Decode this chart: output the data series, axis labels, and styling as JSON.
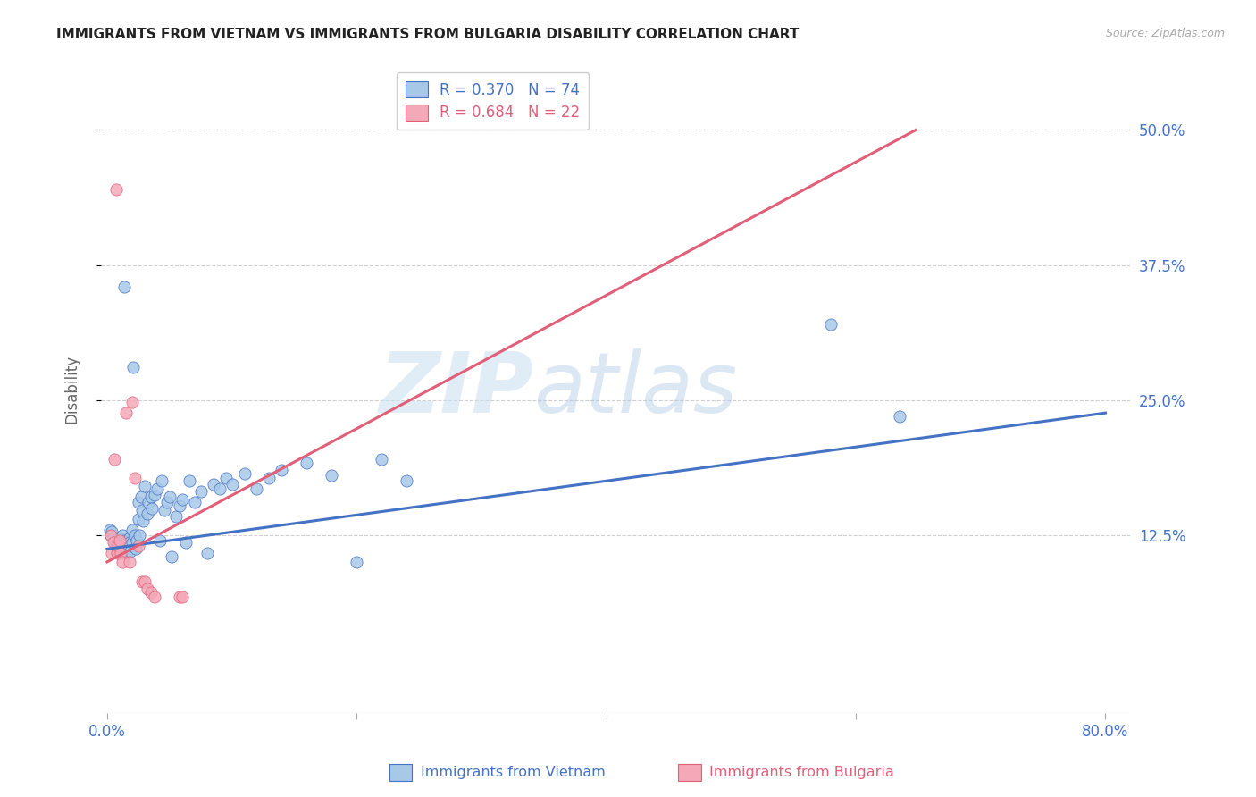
{
  "title": "IMMIGRANTS FROM VIETNAM VS IMMIGRANTS FROM BULGARIA DISABILITY CORRELATION CHART",
  "source": "Source: ZipAtlas.com",
  "ylabel": "Disability",
  "xlim": [
    -0.005,
    0.82
  ],
  "ylim": [
    -0.04,
    0.56
  ],
  "xticks": [
    0.0,
    0.2,
    0.4,
    0.6,
    0.8
  ],
  "xtick_labels": [
    "0.0%",
    "",
    "",
    "",
    "80.0%"
  ],
  "yticks": [
    0.125,
    0.25,
    0.375,
    0.5
  ],
  "ytick_labels": [
    "12.5%",
    "25.0%",
    "37.5%",
    "50.0%"
  ],
  "vietnam_color": "#a8c8e8",
  "bulgaria_color": "#f4a8b8",
  "vietnam_line_color": "#4472c4",
  "bulgaria_line_color": "#e0607a",
  "legend_vietnam_r": "R = 0.370",
  "legend_vietnam_n": "N = 74",
  "legend_bulgaria_r": "R = 0.684",
  "legend_bulgaria_n": "N = 22",
  "watermark_zip": "ZIP",
  "watermark_atlas": "atlas",
  "background_color": "#ffffff",
  "grid_color": "#d0d0d0",
  "title_color": "#222222",
  "right_tick_color": "#4472c4",
  "vietnam_scatter_x": [
    0.002,
    0.003,
    0.004,
    0.005,
    0.006,
    0.007,
    0.008,
    0.008,
    0.009,
    0.01,
    0.01,
    0.01,
    0.011,
    0.011,
    0.012,
    0.012,
    0.013,
    0.013,
    0.014,
    0.015,
    0.015,
    0.016,
    0.017,
    0.018,
    0.018,
    0.019,
    0.02,
    0.02,
    0.021,
    0.022,
    0.023,
    0.024,
    0.025,
    0.025,
    0.026,
    0.027,
    0.028,
    0.029,
    0.03,
    0.032,
    0.033,
    0.035,
    0.036,
    0.038,
    0.04,
    0.042,
    0.044,
    0.046,
    0.048,
    0.05,
    0.052,
    0.055,
    0.058,
    0.06,
    0.063,
    0.066,
    0.07,
    0.075,
    0.08,
    0.085,
    0.09,
    0.095,
    0.1,
    0.11,
    0.12,
    0.13,
    0.14,
    0.16,
    0.18,
    0.2,
    0.22,
    0.24,
    0.58,
    0.635
  ],
  "vietnam_scatter_y": [
    0.13,
    0.125,
    0.128,
    0.122,
    0.118,
    0.115,
    0.12,
    0.112,
    0.119,
    0.108,
    0.115,
    0.122,
    0.118,
    0.113,
    0.125,
    0.11,
    0.12,
    0.116,
    0.355,
    0.118,
    0.112,
    0.108,
    0.115,
    0.122,
    0.118,
    0.11,
    0.13,
    0.118,
    0.28,
    0.125,
    0.112,
    0.12,
    0.155,
    0.14,
    0.125,
    0.16,
    0.148,
    0.138,
    0.17,
    0.145,
    0.155,
    0.16,
    0.15,
    0.162,
    0.168,
    0.12,
    0.175,
    0.148,
    0.155,
    0.16,
    0.105,
    0.142,
    0.152,
    0.158,
    0.118,
    0.175,
    0.155,
    0.165,
    0.108,
    0.172,
    0.168,
    0.178,
    0.172,
    0.182,
    0.168,
    0.178,
    0.185,
    0.192,
    0.18,
    0.1,
    0.195,
    0.175,
    0.32,
    0.235
  ],
  "bulgaria_scatter_x": [
    0.003,
    0.004,
    0.005,
    0.006,
    0.007,
    0.008,
    0.009,
    0.01,
    0.011,
    0.012,
    0.015,
    0.018,
    0.02,
    0.022,
    0.025,
    0.028,
    0.03,
    0.032,
    0.035,
    0.038,
    0.058,
    0.06
  ],
  "bulgaria_scatter_y": [
    0.125,
    0.108,
    0.118,
    0.195,
    0.445,
    0.108,
    0.115,
    0.12,
    0.108,
    0.1,
    0.238,
    0.1,
    0.248,
    0.178,
    0.115,
    0.082,
    0.082,
    0.075,
    0.072,
    0.068,
    0.068,
    0.068
  ],
  "vietnam_trend_x": [
    0.0,
    0.8
  ],
  "vietnam_trend_y": [
    0.112,
    0.238
  ],
  "bulgaria_trend_x": [
    0.0,
    0.648
  ],
  "bulgaria_trend_y": [
    0.1,
    0.5
  ]
}
